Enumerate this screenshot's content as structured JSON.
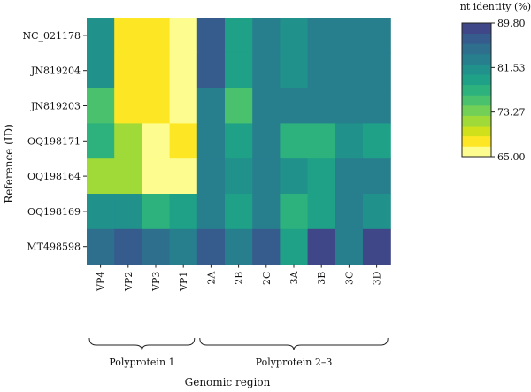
{
  "chart_data": {
    "type": "heatmap",
    "title": "",
    "xlabel": "Genomic region",
    "ylabel": "Reference (ID)",
    "rows": [
      "NC_021178",
      "JN819204",
      "JN819203",
      "OQ198171",
      "OQ198164",
      "OQ198169",
      "MT498598"
    ],
    "columns": [
      "VP4",
      "VP2",
      "VP3",
      "VP1",
      "2A",
      "2B",
      "2C",
      "3A",
      "3B",
      "3C",
      "3D"
    ],
    "column_groups": [
      {
        "label": "Polyprotein 1",
        "columns": [
          "VP4",
          "VP2",
          "VP3",
          "VP1"
        ]
      },
      {
        "label": "Polyprotein 2–3",
        "columns": [
          "2A",
          "2B",
          "2C",
          "3A",
          "3B",
          "3C",
          "3D"
        ]
      }
    ],
    "values": [
      [
        81.5,
        67.0,
        67.0,
        66.0,
        86.5,
        79.5,
        83.5,
        81.0,
        83.5,
        83.5,
        83.5
      ],
      [
        81.5,
        67.0,
        67.0,
        66.0,
        86.5,
        79.5,
        83.5,
        81.0,
        83.5,
        83.5,
        83.5
      ],
      [
        75.5,
        67.0,
        67.0,
        66.0,
        83.5,
        75.5,
        83.5,
        83.5,
        83.5,
        83.5,
        83.5
      ],
      [
        78.0,
        71.5,
        66.0,
        68.5,
        83.5,
        79.5,
        83.5,
        77.5,
        77.5,
        81.0,
        78.5
      ],
      [
        72.5,
        72.5,
        66.0,
        66.0,
        83.5,
        81.0,
        83.5,
        81.5,
        79.5,
        83.5,
        83.5
      ],
      [
        80.5,
        80.5,
        77.5,
        79.5,
        83.5,
        78.5,
        83.5,
        77.5,
        79.5,
        83.5,
        81.0
      ],
      [
        85.0,
        87.5,
        85.5,
        83.5,
        86.0,
        83.5,
        86.0,
        79.5,
        88.0,
        83.5,
        88.0
      ]
    ],
    "colorbar": {
      "title": "nt identity (%)",
      "range": [
        65.0,
        89.8
      ],
      "tick_labels": [
        "89.80",
        "81.53",
        "73.27",
        "65.00"
      ],
      "tick_values": [
        89.8,
        81.53,
        73.27,
        65.0
      ],
      "levels": 12,
      "colors": [
        "#fdfd8f",
        "#fde725",
        "#d0e11c",
        "#a0da39",
        "#73d056",
        "#4ac16d",
        "#2db27d",
        "#1fa187",
        "#21918c",
        "#277f8e",
        "#2e6f8e",
        "#365c8d",
        "#3f4788"
      ],
      "placement": "right"
    },
    "grid": false
  }
}
